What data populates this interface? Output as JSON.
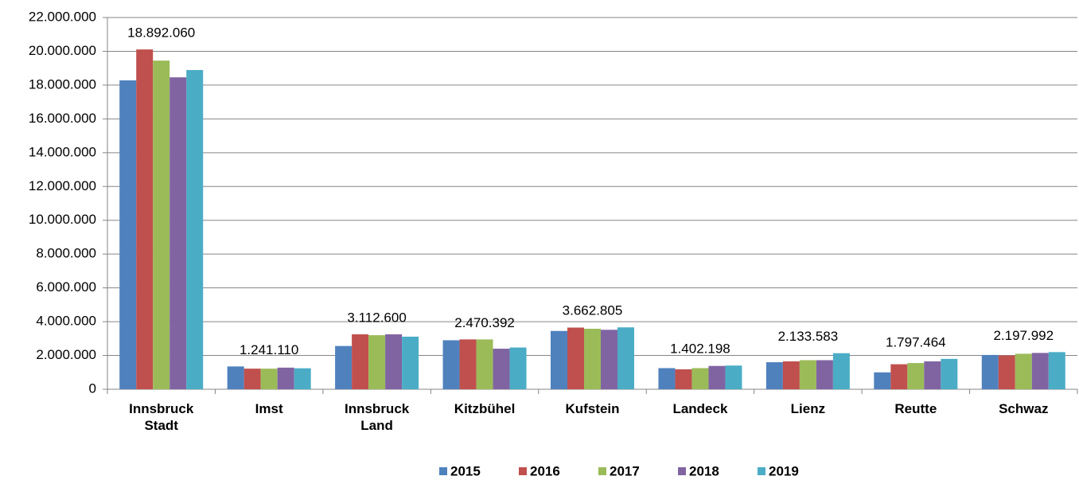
{
  "chart_data": {
    "type": "bar",
    "categories": [
      "Innsbruck Stadt",
      "Imst",
      "Innsbruck Land",
      "Kitzbühel",
      "Kufstein",
      "Landeck",
      "Lienz",
      "Reutte",
      "Schwaz"
    ],
    "series": [
      {
        "name": "2015",
        "color": "#4f81bd",
        "values": [
          18280000,
          1350000,
          2560000,
          2900000,
          3450000,
          1250000,
          1600000,
          1000000,
          2030000
        ]
      },
      {
        "name": "2016",
        "color": "#c0504d",
        "values": [
          20110000,
          1220000,
          3250000,
          2950000,
          3650000,
          1180000,
          1650000,
          1480000,
          2000000
        ]
      },
      {
        "name": "2017",
        "color": "#9bbb59",
        "values": [
          19450000,
          1220000,
          3200000,
          2950000,
          3580000,
          1250000,
          1720000,
          1550000,
          2100000
        ]
      },
      {
        "name": "2018",
        "color": "#8064a2",
        "values": [
          18460000,
          1280000,
          3250000,
          2400000,
          3520000,
          1380000,
          1720000,
          1650000,
          2150000
        ]
      },
      {
        "name": "2019",
        "color": "#4bacc6",
        "values": [
          18892060,
          1241110,
          3112600,
          2470392,
          3662805,
          1402198,
          2133583,
          1797464,
          2197992
        ],
        "value_labels": [
          "18.892.060",
          "1.241.110",
          "3.112.600",
          "2.470.392",
          "3.662.805",
          "1.402.198",
          "2.133.583",
          "1.797.464",
          "2.197.992"
        ]
      }
    ],
    "ylim": [
      0,
      22000000
    ],
    "yticks": [
      0,
      {
        "value": 2000000,
        "label": "2.000.000"
      },
      {
        "value": 4000000,
        "label": "4.000.000"
      },
      {
        "value": 6000000,
        "label": "6.000.000"
      },
      {
        "value": 8000000,
        "label": "8.000.000"
      },
      {
        "value": 10000000,
        "label": "10.000.000"
      },
      {
        "value": 12000000,
        "label": "12.000.000"
      },
      {
        "value": 14000000,
        "label": "14.000.000"
      },
      {
        "value": 16000000,
        "label": "16.000.000"
      },
      {
        "value": 18000000,
        "label": "18.000.000"
      },
      {
        "value": 20000000,
        "label": "20.000.000"
      },
      {
        "value": 22000000,
        "label": "22.000.000"
      }
    ],
    "grid": true,
    "legend": "bottom"
  }
}
